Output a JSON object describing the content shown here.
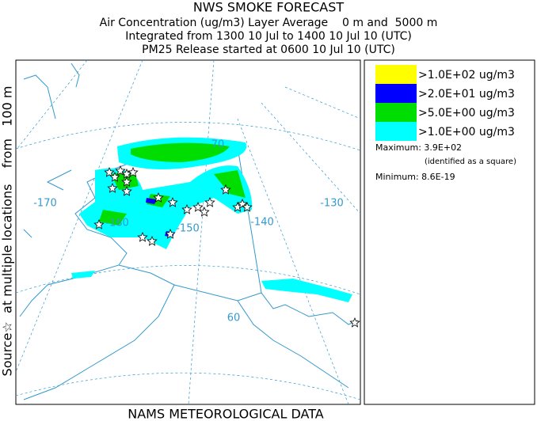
{
  "header": {
    "lines": [
      "NWS SMOKE FORECAST",
      "Air Concentration (ug/m3) Layer Average    0 m and  5000 m",
      "Integrated from 1300 10 Jul to 1400 10 Jul 10 (UTC)",
      "PM25 Release started at 0600 10 Jul 10 (UTC)"
    ]
  },
  "side_label": "Source☆  at multiple locations    from   100 m",
  "map": {
    "labels": [
      "-170",
      "-160",
      "-150",
      "-140",
      "-130",
      "70",
      "60"
    ]
  },
  "legend": {
    "items": [
      {
        "label": ">1.0E+02 ug/m3",
        "color": "#ffff00"
      },
      {
        "label": ">2.0E+01 ug/m3",
        "color": "#0000ff"
      },
      {
        "label": ">5.0E+00 ug/m3",
        "color": "#00dd00"
      },
      {
        "label": ">1.0E+00 ug/m3",
        "color": "#00ffff"
      }
    ],
    "maximum": "Maximum: 3.9E+02",
    "maximum_note": "(identified as a square)",
    "minimum": "Minimum: 8.6E-19"
  },
  "footer": "NAMS METEOROLOGICAL DATA"
}
